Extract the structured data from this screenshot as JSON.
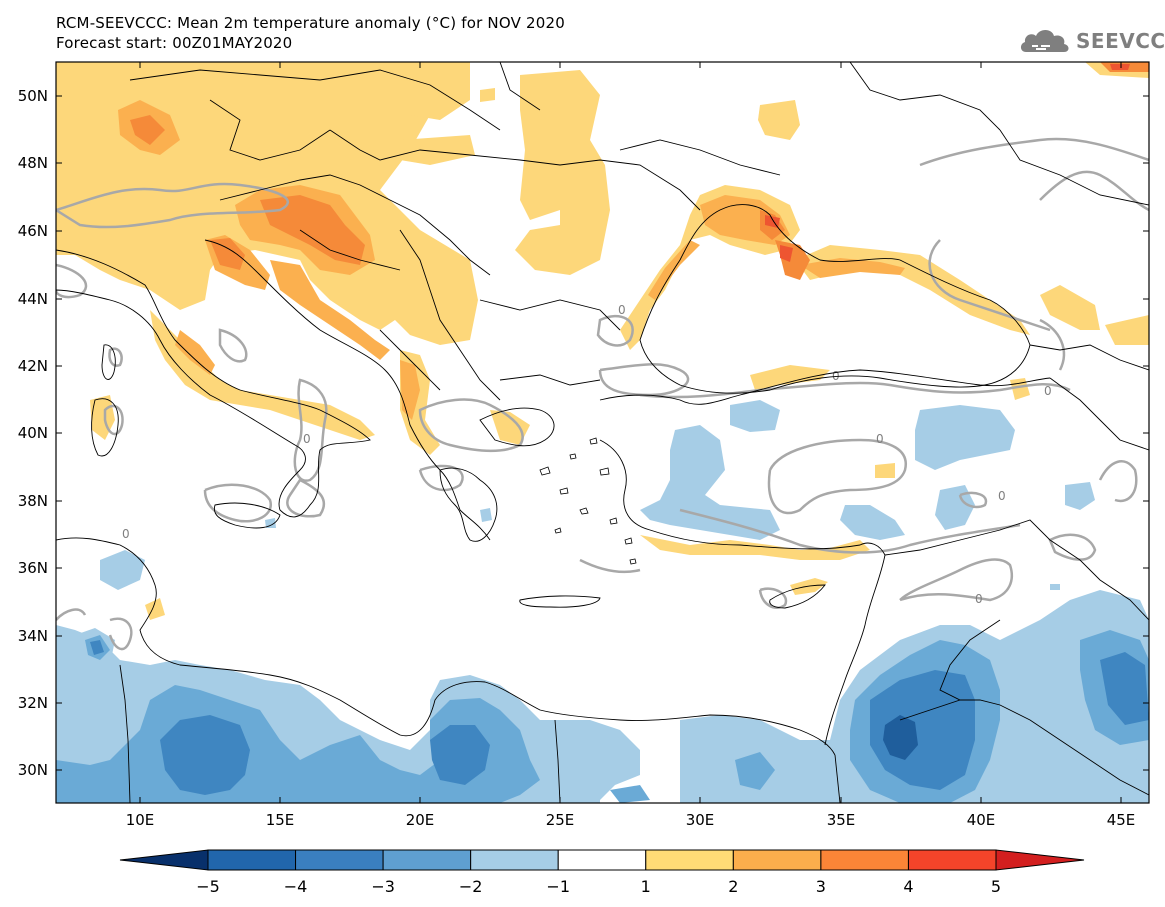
{
  "title": {
    "line1": "RCM-SEEVCCC: Mean 2m temperature anomaly (°C) for NOV 2020",
    "line2": "Forecast start: 00Z01MAY2020"
  },
  "logo": {
    "text": "SEEVCCC",
    "icon": "cloud-icon"
  },
  "map": {
    "lon_range": [
      7,
      46
    ],
    "lat_range": [
      29,
      51
    ],
    "lat_ticks": [
      "50N",
      "48N",
      "46N",
      "44N",
      "42N",
      "40N",
      "38N",
      "36N",
      "34N",
      "32N",
      "30N"
    ],
    "lon_ticks": [
      "10E",
      "15E",
      "20E",
      "25E",
      "30E",
      "35E",
      "40E",
      "45E"
    ],
    "contour_label": "0"
  },
  "colorbar": {
    "labels": [
      "−5",
      "−4",
      "−3",
      "−2",
      "−1",
      "1",
      "2",
      "3",
      "4",
      "5"
    ],
    "colors": [
      "#08306b",
      "#2166ac",
      "#3a7fc0",
      "#5f9fd1",
      "#a6cde6",
      "#ffffff",
      "#ffdb76",
      "#fcae4c",
      "#fb8537",
      "#f4442a",
      "#d31f1f"
    ]
  },
  "palette": {
    "cold1": "#a6cde6",
    "cold2": "#6aaad6",
    "cold3": "#3f86c1",
    "cold4": "#1f5e9c",
    "warm1": "#fdd77a",
    "warm2": "#fbb04f",
    "warm3": "#f58a39",
    "warm4": "#ee5531",
    "coast": "#000000",
    "zero_contour": "#a8a8a8"
  }
}
